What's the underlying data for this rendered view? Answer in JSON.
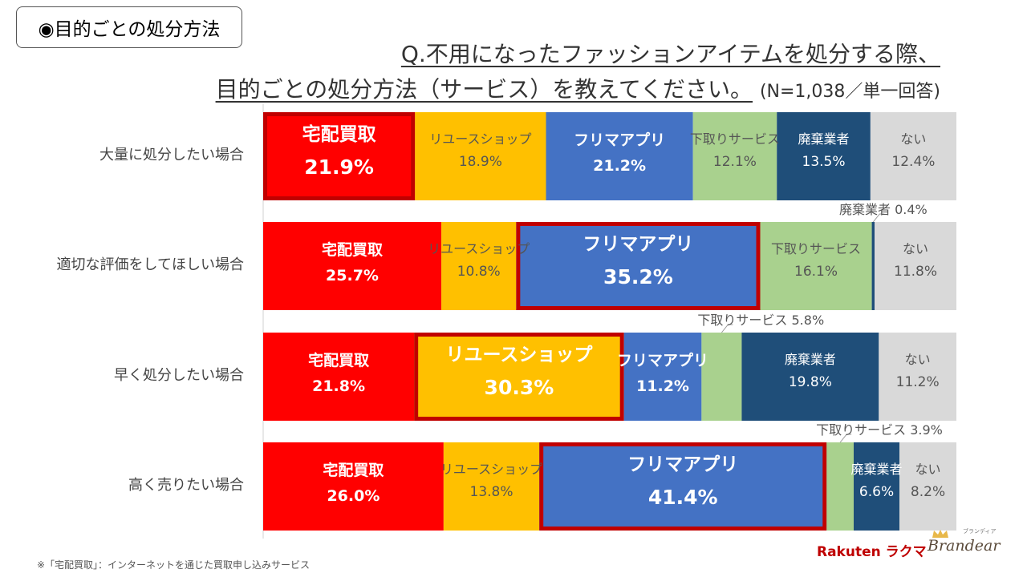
{
  "header": {
    "tag_label": "◉目的ごとの処分方法",
    "title_line1": "Q.不用になったファッションアイテムを処分する際、",
    "title_line2": "目的ごとの処分方法（サービス）を教えてください。",
    "title_note": "(N=1,038／単一回答)"
  },
  "chart_data": {
    "type": "bar",
    "stacked": true,
    "orientation": "horizontal",
    "unit": "%",
    "categories": [
      "大量に処分したい場合",
      "適切な評価をしてほしい場合",
      "早く処分したい場合",
      "高く売りたい場合"
    ],
    "series": [
      {
        "name": "宅配買取",
        "color": "#ff0000",
        "values": [
          21.9,
          25.7,
          21.8,
          26.0
        ]
      },
      {
        "name": "リユースショップ",
        "color": "#ffc000",
        "values": [
          18.9,
          10.8,
          30.3,
          13.8
        ]
      },
      {
        "name": "フリマアプリ",
        "color": "#4472c4",
        "values": [
          21.2,
          35.2,
          11.2,
          41.4
        ]
      },
      {
        "name": "下取りサービス",
        "color": "#a9d18e",
        "values": [
          12.1,
          16.1,
          5.8,
          3.9
        ]
      },
      {
        "name": "廃棄業者",
        "color": "#1f4e79",
        "values": [
          13.5,
          0.4,
          19.8,
          6.6
        ]
      },
      {
        "name": "ない",
        "color": "#d9d9d9",
        "values": [
          12.4,
          11.8,
          11.2,
          8.2
        ]
      }
    ],
    "value_labels": [
      [
        "21.9%",
        "18.9%",
        "21.2%",
        "12.1%",
        "13.5%",
        "12.4%"
      ],
      [
        "25.7%",
        "10.8%",
        "35.2%",
        "16.1%",
        "0.4%",
        "11.8%"
      ],
      [
        "21.8%",
        "30.3%",
        "11.2%",
        "5.8%",
        "19.8%",
        "11.2%"
      ],
      [
        "26.0%",
        "13.8%",
        "41.4%",
        "3.9%",
        "6.6%",
        "8.2%"
      ]
    ],
    "external_labels": [
      {
        "row": 1,
        "series": 4,
        "text": "廃棄業者",
        "value": "0.4%"
      },
      {
        "row": 2,
        "series": 3,
        "text": "下取りサービス",
        "value": "5.8%"
      },
      {
        "row": 3,
        "series": 3,
        "text": "下取りサービス",
        "value": "3.9%"
      }
    ],
    "highlighted": [
      {
        "row": 0,
        "series": 0
      },
      {
        "row": 1,
        "series": 2
      },
      {
        "row": 2,
        "series": 1
      },
      {
        "row": 3,
        "series": 2
      }
    ],
    "highlight_color": "#c00000"
  },
  "footer": {
    "note": "※「宅配買取」：インターネットを通じた買取申し込みサービス",
    "logo_rakuten": "Rakuten ラクマ",
    "logo_brandear": "Brandear",
    "logo_brandear_kana": "ブランディア"
  }
}
